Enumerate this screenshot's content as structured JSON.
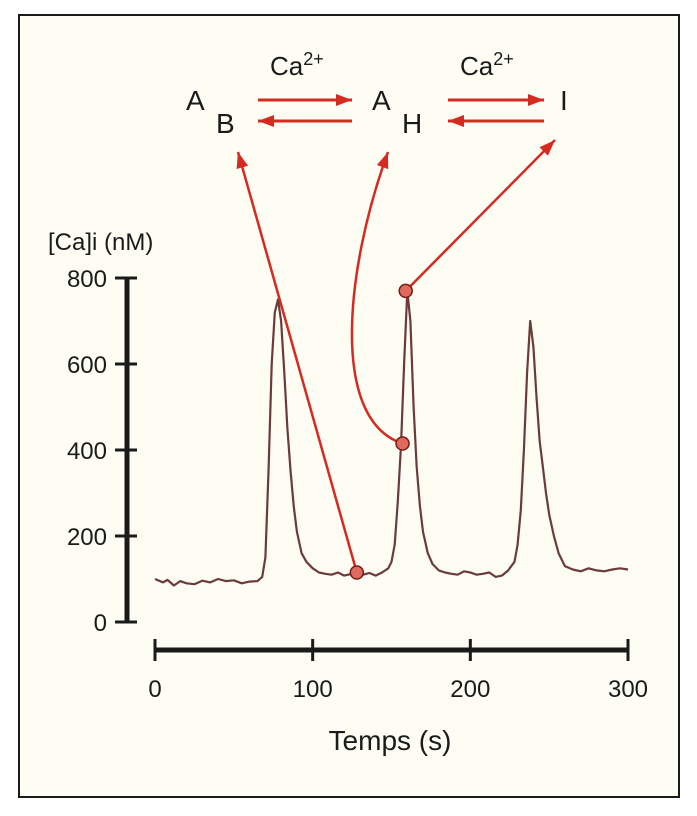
{
  "chart_data": {
    "type": "line",
    "ylabel": "[Ca]i (nM)",
    "xlabel": "Temps (s)",
    "xlim": [
      0,
      300
    ],
    "ylim": [
      0,
      800
    ],
    "x_ticks": [
      0,
      100,
      200,
      300
    ],
    "y_ticks": [
      0,
      200,
      400,
      600,
      800
    ],
    "grid": false,
    "trace_color": "#6b3b3b",
    "annotation_color": "#d42a20",
    "paper_color": "#fdfdf3",
    "series": [
      {
        "x": [
          0,
          5,
          8,
          12,
          16,
          20,
          25,
          30,
          35,
          40,
          45,
          50,
          55,
          60,
          65,
          68,
          70,
          72,
          74,
          76,
          78,
          80,
          82,
          84,
          86,
          88,
          90,
          93,
          96,
          100,
          104,
          108,
          112,
          116,
          120,
          125,
          128,
          132,
          136,
          140,
          144,
          148,
          150,
          152,
          154,
          156,
          158,
          160,
          162,
          164,
          166,
          168,
          170,
          173,
          176,
          180,
          184,
          188,
          192,
          196,
          200,
          204,
          208,
          212,
          216,
          220,
          224,
          228,
          230,
          232,
          234,
          236,
          238,
          240,
          242,
          244,
          246,
          248,
          250,
          253,
          256,
          260,
          265,
          270,
          275,
          280,
          285,
          290,
          295,
          300
        ],
        "y": [
          100,
          92,
          98,
          85,
          95,
          90,
          88,
          96,
          92,
          100,
          95,
          97,
          90,
          94,
          95,
          105,
          150,
          350,
          600,
          720,
          750,
          700,
          580,
          450,
          350,
          270,
          210,
          160,
          140,
          125,
          115,
          112,
          110,
          115,
          108,
          112,
          118,
          110,
          114,
          108,
          115,
          125,
          140,
          180,
          280,
          410,
          600,
          770,
          700,
          500,
          360,
          270,
          210,
          160,
          135,
          120,
          115,
          112,
          110,
          118,
          115,
          110,
          112,
          115,
          105,
          108,
          120,
          140,
          180,
          260,
          400,
          580,
          700,
          640,
          520,
          420,
          360,
          300,
          250,
          200,
          160,
          130,
          122,
          118,
          125,
          120,
          118,
          122,
          125,
          122
        ]
      }
    ],
    "markers": [
      {
        "x": 128,
        "y": 115
      },
      {
        "x": 157,
        "y": 415
      },
      {
        "x": 159,
        "y": 770
      }
    ]
  },
  "scheme": {
    "state_a1": "A",
    "state_b": "B",
    "state_a2": "A",
    "state_h": "H",
    "state_i": "I",
    "ca_label_1": "Ca",
    "ca_sup_1": "2+",
    "ca_label_2": "Ca",
    "ca_sup_2": "2+"
  }
}
